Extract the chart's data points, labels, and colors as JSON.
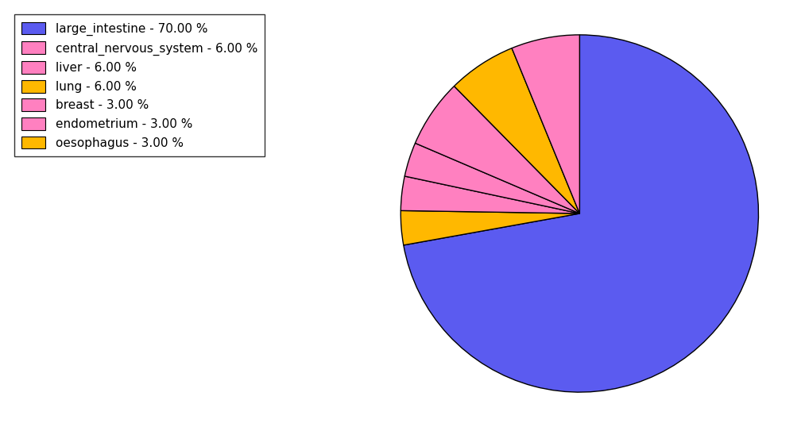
{
  "labels": [
    "large_intestine",
    "oesophagus",
    "breast",
    "endometrium",
    "liver",
    "lung",
    "central_nervous_system"
  ],
  "values": [
    70.0,
    3.0,
    3.0,
    3.0,
    6.0,
    6.0,
    6.0
  ],
  "colors": [
    "#5B5BF0",
    "#FFB800",
    "#FF80C0",
    "#FF80C0",
    "#FF80C0",
    "#FFB800",
    "#FF80C0"
  ],
  "legend_labels": [
    "large_intestine - 70.00 %",
    "central_nervous_system - 6.00 %",
    "liver - 6.00 %",
    "lung - 6.00 %",
    "breast - 3.00 %",
    "endometrium - 3.00 %",
    "oesophagus - 3.00 %"
  ],
  "legend_colors": [
    "#5B5BF0",
    "#FF80C0",
    "#FF80C0",
    "#FFB800",
    "#FF80C0",
    "#FF80C0",
    "#FFB800"
  ],
  "figsize": [
    10.13,
    5.38
  ],
  "dpi": 100,
  "startangle": 90
}
